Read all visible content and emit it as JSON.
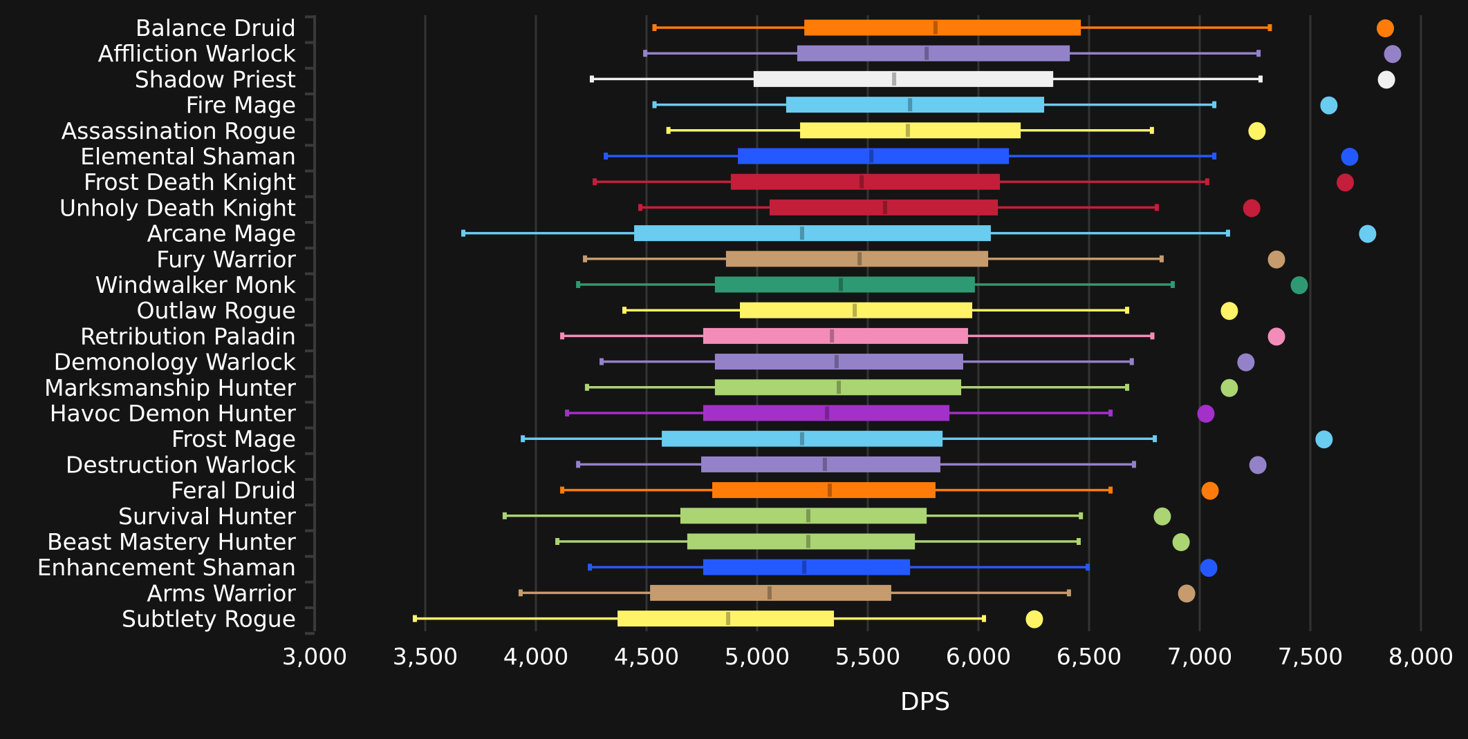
{
  "chart_data": {
    "type": "boxplot",
    "title": "",
    "xlabel": "DPS",
    "ylabel": "",
    "xlim": [
      3000,
      8000
    ],
    "xticks": [
      3000,
      3500,
      4000,
      4500,
      5000,
      5500,
      6000,
      6500,
      7000,
      7500,
      8000
    ],
    "xtick_labels": [
      "3,000",
      "3,500",
      "4,000",
      "4,500",
      "5,000",
      "5,500",
      "6,000",
      "6,500",
      "7,000",
      "7,500",
      "8,000"
    ],
    "grid": "vertical",
    "legend": "none",
    "categories": [
      "Balance Druid",
      "Affliction Warlock",
      "Shadow Priest",
      "Fire Mage",
      "Assassination Rogue",
      "Elemental Shaman",
      "Frost Death Knight",
      "Unholy Death Knight",
      "Arcane Mage",
      "Fury Warrior",
      "Windwalker Monk",
      "Outlaw Rogue",
      "Retribution Paladin",
      "Demonology Warlock",
      "Marksmanship Hunter",
      "Havoc Demon Hunter",
      "Frost Mage",
      "Destruction Warlock",
      "Feral Druid",
      "Survival Hunter",
      "Beast Mastery Hunter",
      "Enhancement Shaman",
      "Arms Warrior",
      "Subtlety Rogue"
    ],
    "series": [
      {
        "name": "Balance Druid",
        "color": "#FF7C0A",
        "min": 4536,
        "q1": 5213,
        "median": 5806,
        "q3": 6463,
        "max": 7317,
        "max_point": 7839
      },
      {
        "name": "Affliction Warlock",
        "color": "#9482C9",
        "min": 4494,
        "q1": 5181,
        "median": 5766,
        "q3": 6413,
        "max": 7266,
        "max_point": 7872
      },
      {
        "name": "Shadow Priest",
        "color": "#F0F0F0",
        "min": 4253,
        "q1": 4984,
        "median": 5619,
        "q3": 6338,
        "max": 7275,
        "max_point": 7844
      },
      {
        "name": "Fire Mage",
        "color": "#69CCF0",
        "min": 4536,
        "q1": 5131,
        "median": 5691,
        "q3": 6297,
        "max": 7066,
        "max_point": 7584
      },
      {
        "name": "Assassination Rogue",
        "color": "#FFF468",
        "min": 4599,
        "q1": 5194,
        "median": 5681,
        "q3": 6191,
        "max": 6784,
        "max_point": 7259
      },
      {
        "name": "Elemental Shaman",
        "color": "#2459FF",
        "min": 4316,
        "q1": 4913,
        "median": 5516,
        "q3": 6138,
        "max": 7066,
        "max_point": 7678
      },
      {
        "name": "Frost Death Knight",
        "color": "#C41E3A",
        "min": 4266,
        "q1": 4881,
        "median": 5472,
        "q3": 6097,
        "max": 7034,
        "max_point": 7658
      },
      {
        "name": "Unholy Death Knight",
        "color": "#C41E3A",
        "min": 4472,
        "q1": 5056,
        "median": 5578,
        "q3": 6088,
        "max": 6806,
        "max_point": 7235
      },
      {
        "name": "Arcane Mage",
        "color": "#69CCF0",
        "min": 3672,
        "q1": 4444,
        "median": 5203,
        "q3": 6056,
        "max": 7128,
        "max_point": 7759
      },
      {
        "name": "Fury Warrior",
        "color": "#C69B6D",
        "min": 4222,
        "q1": 4859,
        "median": 5463,
        "q3": 6044,
        "max": 6828,
        "max_point": 7347
      },
      {
        "name": "Windwalker Monk",
        "color": "#2E9A74",
        "min": 4191,
        "q1": 4809,
        "median": 5378,
        "q3": 5984,
        "max": 6878,
        "max_point": 7450
      },
      {
        "name": "Outlaw Rogue",
        "color": "#FFF468",
        "min": 4400,
        "q1": 4922,
        "median": 5441,
        "q3": 5972,
        "max": 6672,
        "max_point": 7134
      },
      {
        "name": "Retribution Paladin",
        "color": "#F48CBA",
        "min": 4119,
        "q1": 4756,
        "median": 5338,
        "q3": 5953,
        "max": 6786,
        "max_point": 7347
      },
      {
        "name": "Demonology Warlock",
        "color": "#9482C9",
        "min": 4297,
        "q1": 4809,
        "median": 5359,
        "q3": 5931,
        "max": 6693,
        "max_point": 7209
      },
      {
        "name": "Marksmanship Hunter",
        "color": "#ABD473",
        "min": 4231,
        "q1": 4809,
        "median": 5369,
        "q3": 5922,
        "max": 6672,
        "max_point": 7134
      },
      {
        "name": "Havoc Demon Hunter",
        "color": "#A330C9",
        "min": 4141,
        "q1": 4756,
        "median": 5316,
        "q3": 5869,
        "max": 6597,
        "max_point": 7028
      },
      {
        "name": "Frost Mage",
        "color": "#69CCF0",
        "min": 3941,
        "q1": 4569,
        "median": 5203,
        "q3": 5838,
        "max": 6797,
        "max_point": 7562
      },
      {
        "name": "Destruction Warlock",
        "color": "#9482C9",
        "min": 4191,
        "q1": 4747,
        "median": 5306,
        "q3": 5828,
        "max": 6703,
        "max_point": 7263
      },
      {
        "name": "Feral Druid",
        "color": "#FF7C0A",
        "min": 4119,
        "q1": 4797,
        "median": 5328,
        "q3": 5806,
        "max": 6597,
        "max_point": 7047
      },
      {
        "name": "Survival Hunter",
        "color": "#ABD473",
        "min": 3859,
        "q1": 4653,
        "median": 5231,
        "q3": 5766,
        "max": 6463,
        "max_point": 6831
      },
      {
        "name": "Beast Mastery Hunter",
        "color": "#ABD473",
        "min": 4097,
        "q1": 4684,
        "median": 5231,
        "q3": 5713,
        "max": 6453,
        "max_point": 6916
      },
      {
        "name": "Enhancement Shaman",
        "color": "#2459FF",
        "min": 4244,
        "q1": 4756,
        "median": 5213,
        "q3": 5691,
        "max": 6494,
        "max_point": 7041
      },
      {
        "name": "Arms Warrior",
        "color": "#C69B6D",
        "min": 3931,
        "q1": 4516,
        "median": 5056,
        "q3": 5606,
        "max": 6409,
        "max_point": 6941
      },
      {
        "name": "Subtlety Rogue",
        "color": "#FFF468",
        "min": 3453,
        "q1": 4369,
        "median": 4869,
        "q3": 5347,
        "max": 6025,
        "max_point": 6253
      }
    ]
  }
}
